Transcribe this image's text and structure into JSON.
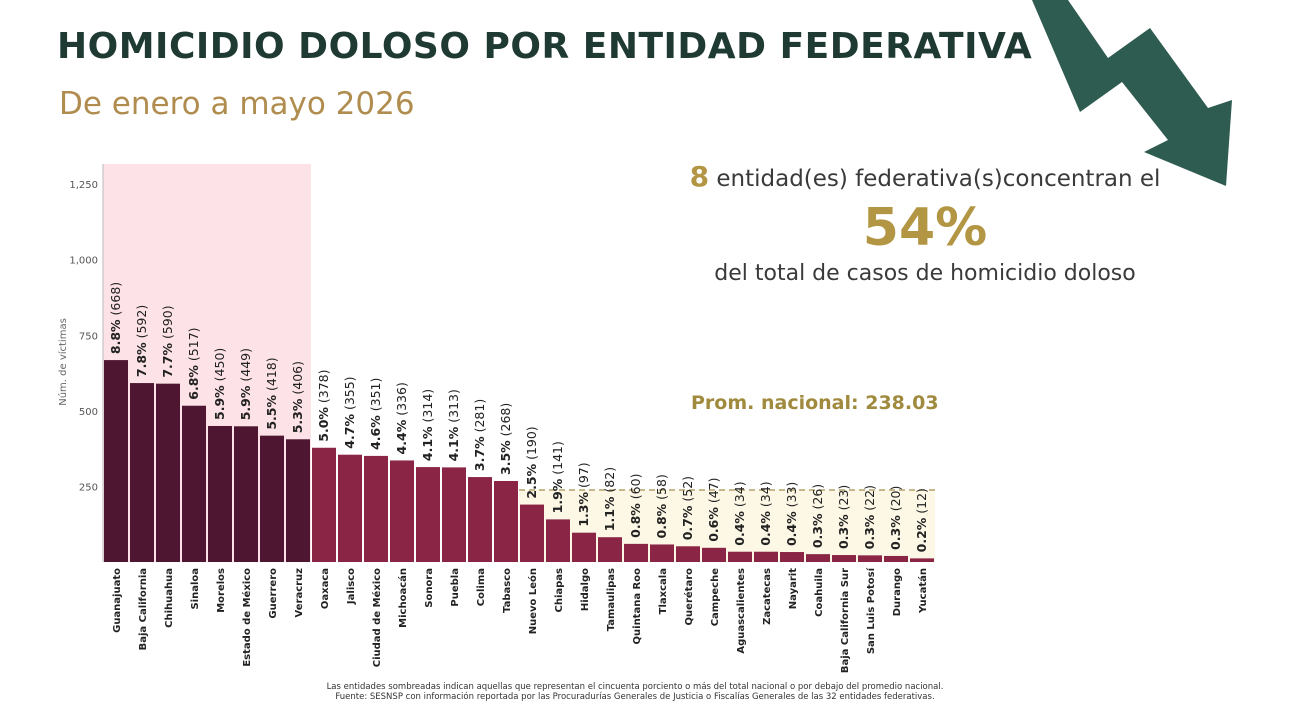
{
  "title": "HOMICIDIO DOLOSO POR ENTIDAD FEDERATIVA",
  "subtitle": "De enero a mayo 2026",
  "callout": {
    "count": "8",
    "text_after_count": " entidad(es) federativa(s)concentran el",
    "percentage": "54%",
    "text_bottom": "del total de casos de homicidio doloso"
  },
  "average_label": "Prom. nacional: 238.03",
  "footnote": {
    "line1": "Las entidades sombreadas indican aquellas que representan el cincuenta porciento o más del total nacional o por debajo del promedio nacional.",
    "line2": "Fuente: SESNSP con información reportada por las Procuradurías Generales de Justicia o Fiscalías Generales de las 32 entidades federativas."
  },
  "colors": {
    "title": "#1f3a33",
    "subtitle": "#b08d4f",
    "accent_gold": "#b39644",
    "bar_top": "#4e1631",
    "bar_rest": "#8a2545",
    "highlight_pink": "#fde3e8",
    "highlight_cream": "#fdf8e6"
  },
  "decoration": {
    "arrow_icon": "trend-down-arrow"
  },
  "chart_data": {
    "type": "bar",
    "ylabel": "Núm. de víctimas",
    "xlabel": "",
    "ylim": [
      0,
      1330
    ],
    "yticks": [
      250,
      500,
      750,
      1000,
      1250
    ],
    "average": 238.03,
    "highlight_top_count": 8,
    "categories": [
      "Guanajuato",
      "Baja California",
      "Chihuahua",
      "Sinaloa",
      "Morelos",
      "Estado de México",
      "Guerrero",
      "Veracruz",
      "Oaxaca",
      "Jalisco",
      "Ciudad de México",
      "Michoacán",
      "Sonora",
      "Puebla",
      "Colima",
      "Tabasco",
      "Nuevo León",
      "Chiapas",
      "Hidalgo",
      "Tamaulipas",
      "Quintana Roo",
      "Tlaxcala",
      "Querétaro",
      "Campeche",
      "Aguascalientes",
      "Zacatecas",
      "Nayarit",
      "Coahuila",
      "Baja California Sur",
      "San Luis Potosí",
      "Durango",
      "Yucatán"
    ],
    "values": [
      668,
      592,
      590,
      517,
      450,
      449,
      418,
      406,
      378,
      355,
      351,
      336,
      314,
      313,
      281,
      268,
      190,
      141,
      97,
      82,
      60,
      58,
      52,
      47,
      34,
      34,
      33,
      26,
      23,
      22,
      20,
      12
    ],
    "percentages": [
      "8.8%",
      "7.8%",
      "7.7%",
      "6.8%",
      "5.9%",
      "5.9%",
      "5.5%",
      "5.3%",
      "5.0%",
      "4.7%",
      "4.6%",
      "4.4%",
      "4.1%",
      "4.1%",
      "3.7%",
      "3.5%",
      "2.5%",
      "1.9%",
      "1.3%",
      "1.1%",
      "0.8%",
      "0.8%",
      "0.7%",
      "0.6%",
      "0.4%",
      "0.4%",
      "0.4%",
      "0.3%",
      "0.3%",
      "0.3%",
      "0.3%",
      "0.2%"
    ]
  }
}
